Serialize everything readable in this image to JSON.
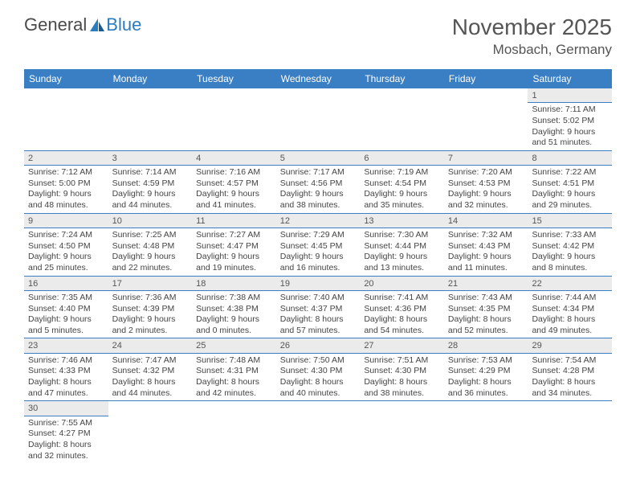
{
  "logo": {
    "text1": "General",
    "text2": "Blue"
  },
  "title": "November 2025",
  "location": "Mosbach, Germany",
  "colors": {
    "header_bg": "#3a7fc4",
    "header_text": "#ffffff",
    "daynum_bg": "#ebebeb",
    "border": "#3a7fc4",
    "text": "#444444"
  },
  "day_names": [
    "Sunday",
    "Monday",
    "Tuesday",
    "Wednesday",
    "Thursday",
    "Friday",
    "Saturday"
  ],
  "weeks": [
    [
      null,
      null,
      null,
      null,
      null,
      null,
      {
        "n": "1",
        "sr": "7:11 AM",
        "ss": "5:02 PM",
        "dl": "9 hours and 51 minutes."
      }
    ],
    [
      {
        "n": "2",
        "sr": "7:12 AM",
        "ss": "5:00 PM",
        "dl": "9 hours and 48 minutes."
      },
      {
        "n": "3",
        "sr": "7:14 AM",
        "ss": "4:59 PM",
        "dl": "9 hours and 44 minutes."
      },
      {
        "n": "4",
        "sr": "7:16 AM",
        "ss": "4:57 PM",
        "dl": "9 hours and 41 minutes."
      },
      {
        "n": "5",
        "sr": "7:17 AM",
        "ss": "4:56 PM",
        "dl": "9 hours and 38 minutes."
      },
      {
        "n": "6",
        "sr": "7:19 AM",
        "ss": "4:54 PM",
        "dl": "9 hours and 35 minutes."
      },
      {
        "n": "7",
        "sr": "7:20 AM",
        "ss": "4:53 PM",
        "dl": "9 hours and 32 minutes."
      },
      {
        "n": "8",
        "sr": "7:22 AM",
        "ss": "4:51 PM",
        "dl": "9 hours and 29 minutes."
      }
    ],
    [
      {
        "n": "9",
        "sr": "7:24 AM",
        "ss": "4:50 PM",
        "dl": "9 hours and 25 minutes."
      },
      {
        "n": "10",
        "sr": "7:25 AM",
        "ss": "4:48 PM",
        "dl": "9 hours and 22 minutes."
      },
      {
        "n": "11",
        "sr": "7:27 AM",
        "ss": "4:47 PM",
        "dl": "9 hours and 19 minutes."
      },
      {
        "n": "12",
        "sr": "7:29 AM",
        "ss": "4:45 PM",
        "dl": "9 hours and 16 minutes."
      },
      {
        "n": "13",
        "sr": "7:30 AM",
        "ss": "4:44 PM",
        "dl": "9 hours and 13 minutes."
      },
      {
        "n": "14",
        "sr": "7:32 AM",
        "ss": "4:43 PM",
        "dl": "9 hours and 11 minutes."
      },
      {
        "n": "15",
        "sr": "7:33 AM",
        "ss": "4:42 PM",
        "dl": "9 hours and 8 minutes."
      }
    ],
    [
      {
        "n": "16",
        "sr": "7:35 AM",
        "ss": "4:40 PM",
        "dl": "9 hours and 5 minutes."
      },
      {
        "n": "17",
        "sr": "7:36 AM",
        "ss": "4:39 PM",
        "dl": "9 hours and 2 minutes."
      },
      {
        "n": "18",
        "sr": "7:38 AM",
        "ss": "4:38 PM",
        "dl": "9 hours and 0 minutes."
      },
      {
        "n": "19",
        "sr": "7:40 AM",
        "ss": "4:37 PM",
        "dl": "8 hours and 57 minutes."
      },
      {
        "n": "20",
        "sr": "7:41 AM",
        "ss": "4:36 PM",
        "dl": "8 hours and 54 minutes."
      },
      {
        "n": "21",
        "sr": "7:43 AM",
        "ss": "4:35 PM",
        "dl": "8 hours and 52 minutes."
      },
      {
        "n": "22",
        "sr": "7:44 AM",
        "ss": "4:34 PM",
        "dl": "8 hours and 49 minutes."
      }
    ],
    [
      {
        "n": "23",
        "sr": "7:46 AM",
        "ss": "4:33 PM",
        "dl": "8 hours and 47 minutes."
      },
      {
        "n": "24",
        "sr": "7:47 AM",
        "ss": "4:32 PM",
        "dl": "8 hours and 44 minutes."
      },
      {
        "n": "25",
        "sr": "7:48 AM",
        "ss": "4:31 PM",
        "dl": "8 hours and 42 minutes."
      },
      {
        "n": "26",
        "sr": "7:50 AM",
        "ss": "4:30 PM",
        "dl": "8 hours and 40 minutes."
      },
      {
        "n": "27",
        "sr": "7:51 AM",
        "ss": "4:30 PM",
        "dl": "8 hours and 38 minutes."
      },
      {
        "n": "28",
        "sr": "7:53 AM",
        "ss": "4:29 PM",
        "dl": "8 hours and 36 minutes."
      },
      {
        "n": "29",
        "sr": "7:54 AM",
        "ss": "4:28 PM",
        "dl": "8 hours and 34 minutes."
      }
    ],
    [
      {
        "n": "30",
        "sr": "7:55 AM",
        "ss": "4:27 PM",
        "dl": "8 hours and 32 minutes."
      },
      null,
      null,
      null,
      null,
      null,
      null
    ]
  ],
  "labels": {
    "sunrise": "Sunrise:",
    "sunset": "Sunset:",
    "daylight": "Daylight:"
  }
}
